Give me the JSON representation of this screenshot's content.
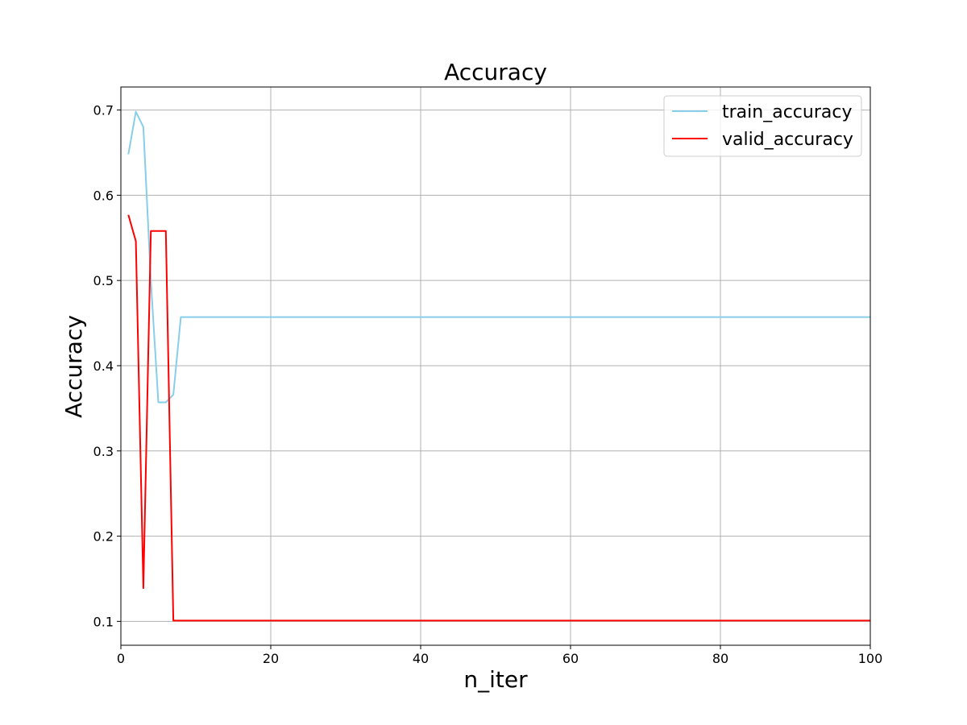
{
  "chart_data": {
    "type": "line",
    "title": "Accuracy",
    "xlabel": "n_iter",
    "ylabel": "Accuracy",
    "xlim": [
      0,
      100
    ],
    "ylim": [
      0.072,
      0.727
    ],
    "xticks": [
      0,
      20,
      40,
      60,
      80,
      100
    ],
    "xtick_labels": [
      "0",
      "20",
      "40",
      "60",
      "80",
      "100"
    ],
    "yticks": [
      0.1,
      0.2,
      0.3,
      0.4,
      0.5,
      0.6,
      0.7
    ],
    "ytick_labels": [
      "0.1",
      "0.2",
      "0.3",
      "0.4",
      "0.5",
      "0.6",
      "0.7"
    ],
    "grid": true,
    "legend_position": "top-right",
    "series": [
      {
        "name": "train_accuracy",
        "color": "#87ceeb",
        "x": [
          1,
          2,
          3,
          4,
          5,
          6,
          7,
          8,
          100
        ],
        "y": [
          0.648,
          0.698,
          0.68,
          0.5,
          0.357,
          0.357,
          0.366,
          0.457,
          0.457
        ]
      },
      {
        "name": "valid_accuracy",
        "color": "#ff0000",
        "x": [
          1,
          2,
          3,
          4,
          5,
          6,
          7,
          8,
          100
        ],
        "y": [
          0.577,
          0.546,
          0.139,
          0.558,
          0.558,
          0.558,
          0.101,
          0.101,
          0.101
        ]
      }
    ]
  }
}
